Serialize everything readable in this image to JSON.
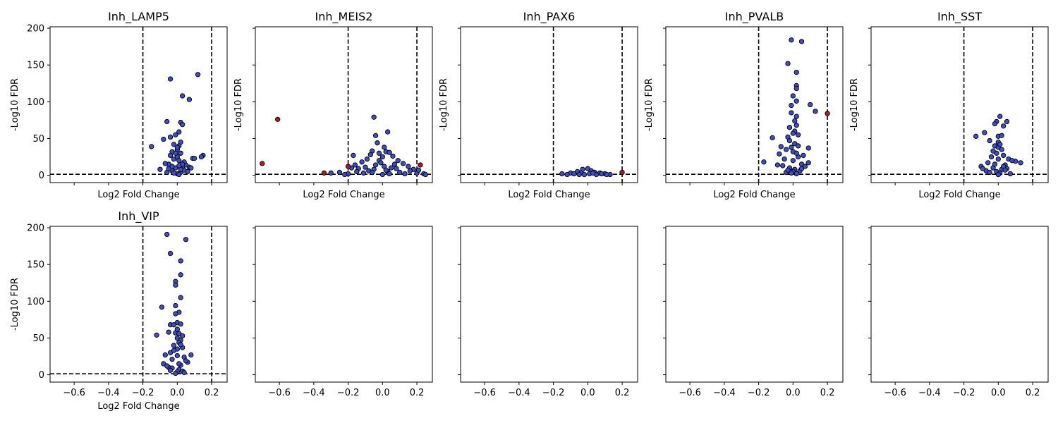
{
  "chart_data": [
    {
      "type": "scatter",
      "title": "Inh_LAMP5",
      "xlabel": "Log2 Fold Change",
      "ylabel": "-Log10 FDR",
      "xlim": [
        -0.74,
        0.29
      ],
      "ylim": [
        -10,
        202
      ],
      "xticks": [
        -0.6,
        -0.4,
        -0.2,
        0.0,
        0.2
      ],
      "yticks": [
        0,
        50,
        100,
        150,
        200
      ],
      "show_xticklabels": false,
      "show_yticklabels": true,
      "vlines": [
        -0.2,
        0.2
      ],
      "hline": 1.3,
      "colors": {
        "normal": "#3f4fbf",
        "significant": "#b2182b",
        "edge": "#000000",
        "threshold": "#000000"
      },
      "points": [
        [
          -0.04,
          131
        ],
        [
          0.12,
          137
        ],
        [
          0.03,
          108
        ],
        [
          0.07,
          103
        ],
        [
          -0.06,
          73
        ],
        [
          0.02,
          72
        ],
        [
          0.03,
          69
        ],
        [
          -0.04,
          52
        ],
        [
          -0.01,
          55
        ],
        [
          0.01,
          59
        ],
        [
          -0.08,
          49
        ],
        [
          -0.15,
          39
        ],
        [
          0.02,
          45
        ],
        [
          0.01,
          40
        ],
        [
          -0.02,
          42
        ],
        [
          0.15,
          27
        ],
        [
          0.14,
          25
        ],
        [
          0.09,
          23
        ],
        [
          0.1,
          23
        ],
        [
          -0.03,
          32
        ],
        [
          0.0,
          35
        ],
        [
          0.02,
          30
        ],
        [
          -0.05,
          15
        ],
        [
          -0.07,
          16
        ],
        [
          -0.1,
          8
        ],
        [
          0.07,
          11
        ],
        [
          0.08,
          10
        ],
        [
          0.05,
          14
        ],
        [
          0.04,
          18
        ],
        [
          -0.04,
          27
        ],
        [
          -0.02,
          22
        ],
        [
          0.0,
          25
        ],
        [
          0.01,
          20
        ],
        [
          0.03,
          12
        ],
        [
          -0.01,
          10
        ],
        [
          -0.03,
          6
        ],
        [
          0.02,
          4
        ],
        [
          0.0,
          2
        ],
        [
          0.01,
          1
        ],
        [
          -0.02,
          3
        ],
        [
          0.04,
          7
        ],
        [
          -0.05,
          9
        ],
        [
          0.06,
          5
        ],
        [
          -0.06,
          4
        ],
        [
          0.03,
          15
        ],
        [
          -0.01,
          30
        ],
        [
          0.0,
          38
        ],
        [
          -0.03,
          12
        ],
        [
          0.02,
          8
        ],
        [
          0.01,
          13
        ]
      ],
      "significant": []
    },
    {
      "type": "scatter",
      "title": "Inh_MEIS2",
      "xlabel": "Log2 Fold Change",
      "ylabel": "-Log10 FDR",
      "xlim": [
        -0.74,
        0.29
      ],
      "ylim": [
        -10,
        202
      ],
      "xticks": [
        -0.6,
        -0.4,
        -0.2,
        0.0,
        0.2
      ],
      "yticks": [
        0,
        50,
        100,
        150,
        200
      ],
      "show_xticklabels": false,
      "show_yticklabels": false,
      "vlines": [
        -0.2,
        0.2
      ],
      "hline": 1.3,
      "points": [
        [
          -0.05,
          79
        ],
        [
          0.03,
          59
        ],
        [
          -0.04,
          54
        ],
        [
          -0.03,
          44
        ],
        [
          0.01,
          38
        ],
        [
          -0.06,
          33
        ],
        [
          0.02,
          32
        ],
        [
          0.04,
          31
        ],
        [
          -0.02,
          30
        ],
        [
          -0.07,
          28
        ],
        [
          0.06,
          26
        ],
        [
          -0.09,
          22
        ],
        [
          0.09,
          20
        ],
        [
          -0.12,
          18
        ],
        [
          0.12,
          16
        ],
        [
          -0.16,
          14
        ],
        [
          0.15,
          12
        ],
        [
          -0.18,
          10
        ],
        [
          0.18,
          8
        ],
        [
          -0.25,
          4
        ],
        [
          0.24,
          2
        ],
        [
          -0.3,
          3
        ],
        [
          0.25,
          1
        ],
        [
          -0.14,
          9
        ],
        [
          0.07,
          15
        ],
        [
          -0.02,
          20
        ],
        [
          0.0,
          25
        ],
        [
          0.01,
          12
        ],
        [
          -0.05,
          8
        ],
        [
          0.03,
          5
        ],
        [
          -0.08,
          6
        ],
        [
          0.1,
          4
        ],
        [
          -0.11,
          3
        ],
        [
          0.13,
          2
        ],
        [
          -0.2,
          2
        ],
        [
          0.2,
          3
        ],
        [
          -0.01,
          17
        ],
        [
          0.05,
          10
        ],
        [
          -0.04,
          14
        ],
        [
          0.02,
          7
        ],
        [
          -0.1,
          11
        ],
        [
          0.08,
          9
        ],
        [
          -0.06,
          4
        ],
        [
          0.04,
          2
        ],
        [
          -0.15,
          5
        ],
        [
          0.16,
          6
        ],
        [
          0.0,
          1
        ],
        [
          -0.22,
          1
        ],
        [
          0.21,
          7
        ],
        [
          -0.17,
          27
        ]
      ],
      "significant": [
        [
          -0.61,
          76
        ],
        [
          -0.7,
          16
        ],
        [
          -0.34,
          3
        ],
        [
          -0.2,
          12
        ],
        [
          0.22,
          14
        ]
      ]
    },
    {
      "type": "scatter",
      "title": "Inh_PAX6",
      "xlabel": "Log2 Fold Change",
      "ylabel": "-Log10 FDR",
      "xlim": [
        -0.74,
        0.29
      ],
      "ylim": [
        -10,
        202
      ],
      "xticks": [
        -0.6,
        -0.4,
        -0.2,
        0.0,
        0.2
      ],
      "yticks": [
        0,
        50,
        100,
        150,
        200
      ],
      "show_xticklabels": false,
      "show_yticklabels": false,
      "vlines": [
        -0.2,
        0.2
      ],
      "hline": 1.3,
      "points": [
        [
          -0.15,
          2
        ],
        [
          -0.1,
          3
        ],
        [
          -0.06,
          5
        ],
        [
          -0.03,
          8
        ],
        [
          0.0,
          9
        ],
        [
          0.02,
          6
        ],
        [
          0.04,
          4
        ],
        [
          0.07,
          3
        ],
        [
          0.1,
          2
        ],
        [
          0.13,
          1
        ],
        [
          -0.12,
          1
        ],
        [
          -0.08,
          2
        ],
        [
          -0.04,
          3
        ],
        [
          0.01,
          2
        ],
        [
          0.05,
          1
        ],
        [
          -0.02,
          1
        ],
        [
          0.03,
          3
        ],
        [
          0.08,
          2
        ],
        [
          -0.05,
          1
        ],
        [
          0.11,
          1
        ]
      ],
      "significant": [
        [
          0.2,
          4
        ]
      ]
    },
    {
      "type": "scatter",
      "title": "Inh_PVALB",
      "xlabel": "Log2 Fold Change",
      "ylabel": "-Log10 FDR",
      "xlim": [
        -0.74,
        0.29
      ],
      "ylim": [
        -10,
        202
      ],
      "xticks": [
        -0.6,
        -0.4,
        -0.2,
        0.0,
        0.2
      ],
      "yticks": [
        0,
        50,
        100,
        150,
        200
      ],
      "show_xticklabels": false,
      "show_yticklabels": false,
      "vlines": [
        -0.2,
        0.2
      ],
      "hline": 1.3,
      "points": [
        [
          -0.01,
          184
        ],
        [
          0.05,
          182
        ],
        [
          -0.03,
          152
        ],
        [
          0.02,
          140
        ],
        [
          0.02,
          122
        ],
        [
          0.02,
          118
        ],
        [
          0.0,
          108
        ],
        [
          0.02,
          101
        ],
        [
          0.1,
          96
        ],
        [
          -0.01,
          95
        ],
        [
          0.13,
          87
        ],
        [
          -0.01,
          85
        ],
        [
          0.02,
          80
        ],
        [
          0.01,
          74
        ],
        [
          0.02,
          68
        ],
        [
          -0.02,
          65
        ],
        [
          0.01,
          60
        ],
        [
          0.0,
          57
        ],
        [
          0.03,
          55
        ],
        [
          -0.03,
          52
        ],
        [
          -0.12,
          51
        ],
        [
          -0.02,
          47
        ],
        [
          0.01,
          43
        ],
        [
          0.03,
          40
        ],
        [
          -0.07,
          39
        ],
        [
          0.09,
          37
        ],
        [
          -0.04,
          35
        ],
        [
          0.0,
          32
        ],
        [
          -0.08,
          29
        ],
        [
          0.06,
          27
        ],
        [
          0.03,
          25
        ],
        [
          -0.05,
          22
        ],
        [
          -0.17,
          18
        ],
        [
          0.09,
          17
        ],
        [
          0.05,
          15
        ],
        [
          -0.06,
          13
        ],
        [
          -0.02,
          10
        ],
        [
          0.01,
          8
        ],
        [
          0.0,
          5
        ],
        [
          -0.01,
          3
        ],
        [
          0.02,
          2
        ],
        [
          0.04,
          6
        ],
        [
          -0.04,
          4
        ],
        [
          0.07,
          12
        ],
        [
          -0.09,
          14
        ],
        [
          0.0,
          20
        ],
        [
          0.02,
          30
        ],
        [
          -0.01,
          38
        ],
        [
          0.05,
          9
        ],
        [
          -0.03,
          7
        ]
      ],
      "significant": [
        [
          0.2,
          84
        ]
      ]
    },
    {
      "type": "scatter",
      "title": "Inh_SST",
      "xlabel": "Log2 Fold Change",
      "ylabel": "-Log10 FDR",
      "xlim": [
        -0.74,
        0.29
      ],
      "ylim": [
        -10,
        202
      ],
      "xticks": [
        -0.6,
        -0.4,
        -0.2,
        0.0,
        0.2
      ],
      "yticks": [
        0,
        50,
        100,
        150,
        200
      ],
      "show_xticklabels": false,
      "show_yticklabels": false,
      "vlines": [
        -0.2,
        0.2
      ],
      "hline": 1.3,
      "points": [
        [
          0.01,
          80
        ],
        [
          -0.01,
          73
        ],
        [
          0.05,
          73
        ],
        [
          -0.02,
          70
        ],
        [
          0.03,
          67
        ],
        [
          -0.08,
          58
        ],
        [
          0.0,
          53
        ],
        [
          0.02,
          54
        ],
        [
          -0.13,
          53
        ],
        [
          -0.05,
          47
        ],
        [
          0.0,
          45
        ],
        [
          -0.02,
          40
        ],
        [
          0.0,
          38
        ],
        [
          0.02,
          35
        ],
        [
          -0.01,
          30
        ],
        [
          0.03,
          27
        ],
        [
          -0.04,
          25
        ],
        [
          0.06,
          22
        ],
        [
          0.1,
          19
        ],
        [
          0.13,
          17
        ],
        [
          0.08,
          20
        ],
        [
          -0.06,
          17
        ],
        [
          0.04,
          14
        ],
        [
          -0.1,
          12
        ],
        [
          -0.03,
          10
        ],
        [
          0.02,
          8
        ],
        [
          -0.01,
          5
        ],
        [
          0.01,
          3
        ],
        [
          0.0,
          1
        ],
        [
          -0.07,
          6
        ],
        [
          0.05,
          9
        ],
        [
          -0.02,
          15
        ],
        [
          0.03,
          12
        ],
        [
          -0.05,
          4
        ],
        [
          0.07,
          2
        ],
        [
          0.0,
          22
        ],
        [
          -0.03,
          33
        ],
        [
          0.04,
          7
        ],
        [
          -0.09,
          9
        ],
        [
          0.01,
          42
        ]
      ],
      "significant": []
    },
    {
      "type": "scatter",
      "title": "Inh_VIP",
      "xlabel": "Log2 Fold Change",
      "ylabel": "-Log10 FDR",
      "xlim": [
        -0.74,
        0.29
      ],
      "ylim": [
        -10,
        202
      ],
      "xticks": [
        -0.6,
        -0.4,
        -0.2,
        0.0,
        0.2
      ],
      "yticks": [
        0,
        50,
        100,
        150,
        200
      ],
      "show_xticklabels": true,
      "show_yticklabels": true,
      "vlines": [
        -0.2,
        0.2
      ],
      "hline": 1.3,
      "points": [
        [
          -0.06,
          191
        ],
        [
          0.05,
          184
        ],
        [
          -0.04,
          165
        ],
        [
          0.02,
          155
        ],
        [
          0.02,
          136
        ],
        [
          -0.01,
          127
        ],
        [
          -0.01,
          122
        ],
        [
          0.02,
          105
        ],
        [
          -0.01,
          94
        ],
        [
          -0.09,
          92
        ],
        [
          0.01,
          85
        ],
        [
          -0.01,
          83
        ],
        [
          0.0,
          71
        ],
        [
          -0.04,
          68
        ],
        [
          0.02,
          69
        ],
        [
          -0.02,
          68
        ],
        [
          -0.05,
          58
        ],
        [
          -0.01,
          57
        ],
        [
          0.01,
          56
        ],
        [
          0.03,
          53
        ],
        [
          -0.12,
          54
        ],
        [
          0.0,
          50
        ],
        [
          0.02,
          47
        ],
        [
          0.01,
          44
        ],
        [
          -0.02,
          40
        ],
        [
          0.03,
          37
        ],
        [
          0.0,
          35
        ],
        [
          -0.04,
          30
        ],
        [
          0.08,
          27
        ],
        [
          -0.07,
          27
        ],
        [
          0.04,
          24
        ],
        [
          -0.03,
          21
        ],
        [
          0.06,
          17
        ],
        [
          -0.08,
          15
        ],
        [
          0.02,
          13
        ],
        [
          -0.05,
          10
        ],
        [
          0.01,
          7
        ],
        [
          0.0,
          4
        ],
        [
          -0.01,
          2
        ],
        [
          0.03,
          5
        ],
        [
          -0.06,
          12
        ],
        [
          0.05,
          19
        ],
        [
          -0.02,
          33
        ],
        [
          0.0,
          26
        ],
        [
          0.01,
          15
        ],
        [
          -0.03,
          9
        ],
        [
          0.04,
          3
        ],
        [
          -0.04,
          6
        ],
        [
          0.02,
          41
        ],
        [
          0.0,
          62
        ]
      ],
      "significant": []
    }
  ],
  "empty_panels": [
    {
      "xticks": [
        -0.6,
        -0.4,
        -0.2,
        0.0,
        0.2
      ],
      "yticks": [
        0,
        50,
        100,
        150,
        200
      ]
    },
    {
      "xticks": [
        -0.6,
        -0.4,
        -0.2,
        0.0,
        0.2
      ],
      "yticks": [
        0,
        50,
        100,
        150,
        200
      ]
    },
    {
      "xticks": [
        -0.6,
        -0.4,
        -0.2,
        0.0,
        0.2
      ],
      "yticks": [
        0,
        50,
        100,
        150,
        200
      ]
    },
    {
      "xticks": [
        -0.6,
        -0.4,
        -0.2,
        0.0,
        0.2
      ],
      "yticks": [
        0,
        50,
        100,
        150,
        200
      ]
    }
  ]
}
